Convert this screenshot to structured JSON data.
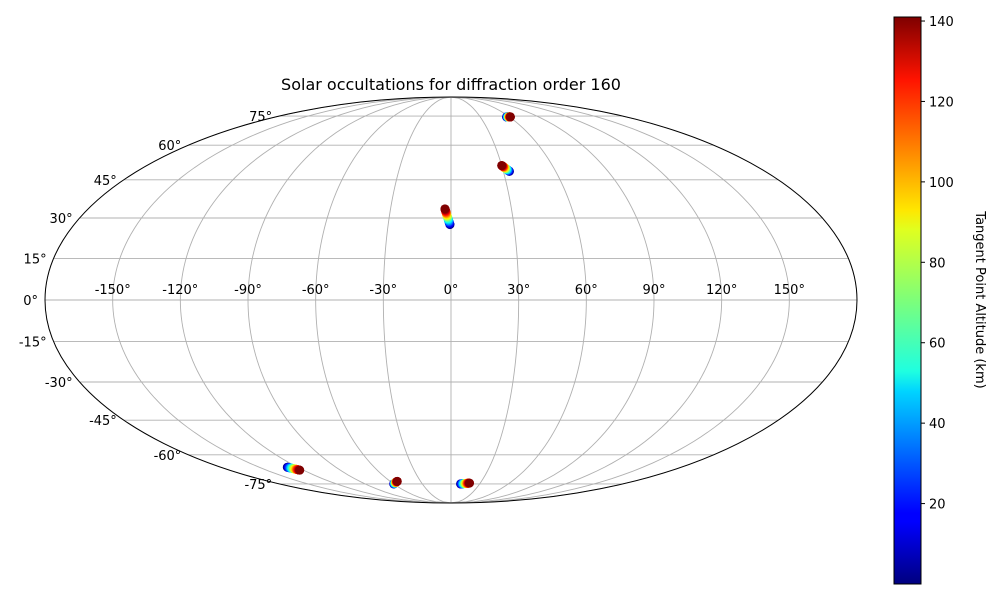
{
  "chart_data": {
    "type": "scatter",
    "projection": "mollweide",
    "title": "Solar occultations for diffraction order 160",
    "lon_ticks": [
      -150,
      -120,
      -90,
      -60,
      -30,
      0,
      30,
      60,
      90,
      120,
      150
    ],
    "lat_ticks": [
      -75,
      -60,
      -45,
      -30,
      -15,
      0,
      15,
      30,
      45,
      60,
      75
    ],
    "tick_suffix": "°",
    "grid": true,
    "colorbar": {
      "label": "Tangent Point Altitude (km)",
      "colormap": "jet",
      "range": [
        0,
        141
      ],
      "ticks": [
        20,
        40,
        60,
        80,
        100,
        120,
        140
      ]
    },
    "series": [
      {
        "lon_start": 57,
        "lat_start": 74.5,
        "lon_end": 61,
        "lat_end": 74.5,
        "alt_start": 0,
        "alt_end": 141
      },
      {
        "lon_start": 33.5,
        "lat_start": 48.5,
        "lon_end": 30,
        "lat_end": 51,
        "alt_start": 0,
        "alt_end": 141
      },
      {
        "lon_start": -0.5,
        "lat_start": 27.5,
        "lon_end": -3,
        "lat_end": 33.5,
        "alt_start": 0,
        "alt_end": 141
      },
      {
        "lon_start": -128,
        "lat_start": -66,
        "lon_end": -123,
        "lat_end": -67.5,
        "alt_start": 0,
        "alt_end": 141
      },
      {
        "lon_start": -60,
        "lat_start": -75,
        "lon_end": -53,
        "lat_end": -73.5,
        "alt_start": 0,
        "alt_end": 141
      },
      {
        "lon_start": 10,
        "lat_start": -75,
        "lon_end": 19,
        "lat_end": -74.5,
        "alt_start": 0,
        "alt_end": 141
      }
    ]
  }
}
